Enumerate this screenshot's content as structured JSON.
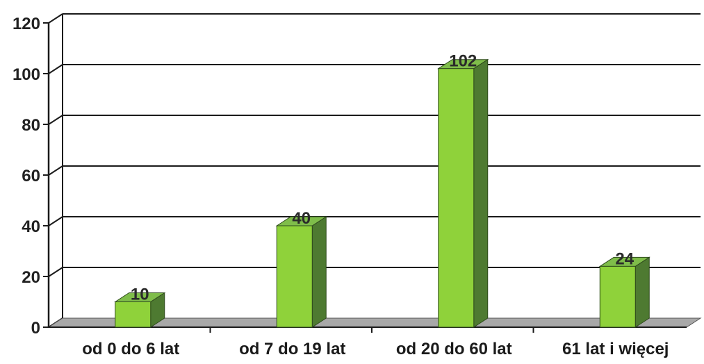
{
  "chart_data": {
    "type": "bar",
    "categories": [
      "od 0 do 6 lat",
      "od 7 do 19 lat",
      "od 20 do 60 lat",
      "61 lat i więcej"
    ],
    "values": [
      10,
      40,
      102,
      24
    ],
    "data_labels": [
      "10",
      "40",
      "102",
      "24"
    ],
    "ylim": [
      0,
      120
    ],
    "yticks": [
      "0",
      "20",
      "40",
      "60",
      "80",
      "100",
      "120"
    ],
    "grid": true,
    "legend": "none",
    "style": "3d"
  },
  "colors": {
    "bar_front": "#8fd23a",
    "bar_top": "#7fbd4a",
    "bar_side": "#4e7a31",
    "floor": "#a8a8a8",
    "grid": "#1a1a1a"
  }
}
